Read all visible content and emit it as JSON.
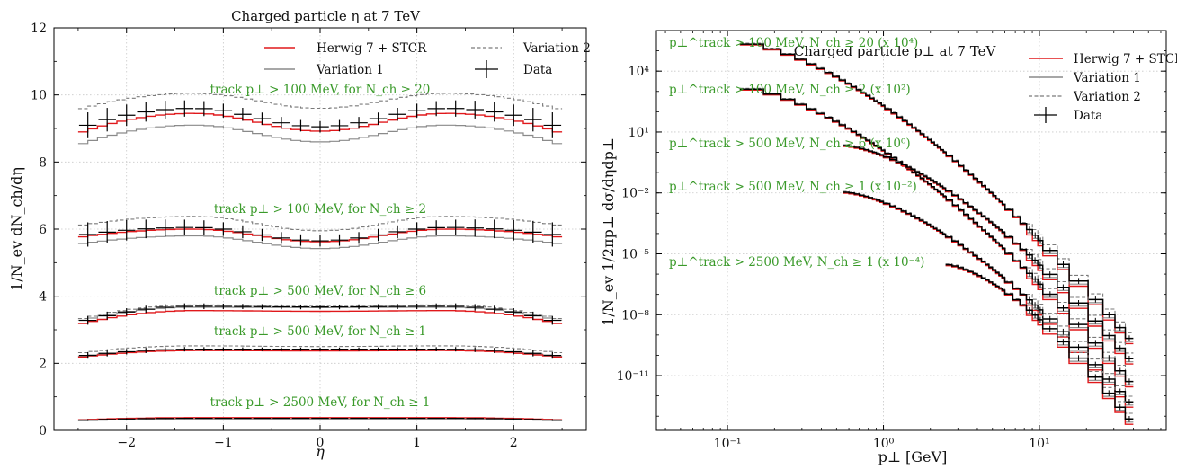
{
  "colors": {
    "herwig": "#e0181b",
    "variation1": "#8a8a8a",
    "variation2": "#7a7a7a",
    "data": "#000000",
    "annotation": "#3a9a2a"
  },
  "chart_data": [
    {
      "type": "line",
      "title": "Charged particle η at 7 TeV",
      "xlabel": "η",
      "ylabel": "1/N_ev dN_ch/dη",
      "xlim": [
        -2.75,
        2.75
      ],
      "ylim": [
        0,
        12
      ],
      "x_ticks": [
        -2,
        -1,
        0,
        1,
        2
      ],
      "x_tick_labels": [
        "−2",
        "−1",
        "0",
        "1",
        "2"
      ],
      "y_ticks": [
        0,
        2,
        4,
        6,
        8,
        10,
        12
      ],
      "y_tick_labels": [
        "0",
        "2",
        "4",
        "6",
        "8",
        "10",
        "12"
      ],
      "grid": true,
      "legend_position": "top-right",
      "legend": [
        {
          "label": "Herwig 7 + STCR",
          "style": "herwig"
        },
        {
          "label": "Variation 2",
          "style": "variation2"
        },
        {
          "label": "Variation 1",
          "style": "variation1"
        },
        {
          "label": "Data",
          "style": "data"
        }
      ],
      "bins": {
        "start": -2.5,
        "width": 0.1,
        "count": 50
      },
      "groups": [
        {
          "annotation": "track p⊥ > 100 MeV, for N_ch ≥ 20",
          "data": {
            "center": 9.05,
            "edge": 9.6,
            "wing": 9.0,
            "err_center": 0.17,
            "err_edge": 0.35
          },
          "herwig": {
            "center": 8.92,
            "edge": 9.45,
            "wing": 8.85
          },
          "var1": {
            "center": 8.6,
            "edge": 9.1,
            "wing": 8.5
          },
          "var2": {
            "center": 9.6,
            "edge": 10.05,
            "wing": 9.55
          }
        },
        {
          "annotation": "track p⊥ > 100 MeV, for N_ch ≥ 2",
          "data": {
            "center": 5.65,
            "edge": 6.05,
            "wing": 5.8,
            "err_center": 0.17,
            "err_edge": 0.33
          },
          "herwig": {
            "center": 5.62,
            "edge": 6.0,
            "wing": 5.75
          },
          "var1": {
            "center": 5.42,
            "edge": 5.8,
            "wing": 5.55
          },
          "var2": {
            "center": 5.95,
            "edge": 6.38,
            "wing": 6.1
          }
        },
        {
          "annotation": "track p⊥ > 500 MeV, for N_ch ≥ 6",
          "data": {
            "center": 3.68,
            "edge": 3.7,
            "wing": 3.2,
            "err_center": 0.07,
            "err_edge": 0.12
          },
          "herwig": {
            "center": 3.55,
            "edge": 3.57,
            "wing": 3.15
          },
          "var1": {
            "center": 3.66,
            "edge": 3.67,
            "wing": 3.25
          },
          "var2": {
            "center": 3.72,
            "edge": 3.74,
            "wing": 3.3
          }
        },
        {
          "annotation": "track p⊥ > 500 MeV, for N_ch ≥ 1",
          "data": {
            "center": 2.42,
            "edge": 2.42,
            "wing": 2.2,
            "err_center": 0.05,
            "err_edge": 0.09
          },
          "herwig": {
            "center": 2.37,
            "edge": 2.38,
            "wing": 2.17
          },
          "var1": {
            "center": 2.4,
            "edge": 2.4,
            "wing": 2.2
          },
          "var2": {
            "center": 2.5,
            "edge": 2.52,
            "wing": 2.3
          }
        },
        {
          "annotation": "track p⊥ > 2500 MeV, for N_ch ≥ 1",
          "data": {
            "center": 0.36,
            "edge": 0.36,
            "wing": 0.3,
            "err_center": 0.01,
            "err_edge": 0.02
          },
          "herwig": {
            "center": 0.38,
            "edge": 0.38,
            "wing": 0.31
          },
          "var1": {
            "center": 0.34,
            "edge": 0.34,
            "wing": 0.28
          },
          "var2": {
            "center": 0.37,
            "edge": 0.37,
            "wing": 0.3
          }
        }
      ]
    },
    {
      "type": "line",
      "title": "Charged particle p⊥ at 7 TeV",
      "xlabel": "p⊥ [GeV]",
      "ylabel": "1/N_ev 1/2πp⊥ dσ/dηdp⊥",
      "xscale": "log",
      "yscale": "log",
      "xlim": [
        0.035,
        65
      ],
      "ylim": [
        2e-14,
        1000000.0
      ],
      "x_major_ticks": [
        0.1,
        1,
        10
      ],
      "x_tick_labels": [
        "10⁻¹",
        "10⁰",
        "10¹"
      ],
      "y_major_ticks": [
        10000.0,
        10,
        0.01,
        1e-05,
        1e-08,
        1e-11
      ],
      "y_tick_labels": [
        "10⁴",
        "10¹",
        "10⁻²",
        "10⁻⁵",
        "10⁻⁸",
        "10⁻¹¹"
      ],
      "grid": true,
      "legend_position": "top-right",
      "legend": [
        {
          "label": "Herwig 7 + STCR",
          "style": "herwig"
        },
        {
          "label": "Variation 1",
          "style": "variation1"
        },
        {
          "label": "Variation 2",
          "style": "variation2"
        },
        {
          "label": "Data",
          "style": "data"
        }
      ],
      "series": [
        {
          "annotation": "p⊥^track > 100 MeV, N_ch ≥ 20 (x 10⁴)",
          "pt_min": 0.12,
          "y_at_min": 250000.0,
          "y_at_max": 4e-10
        },
        {
          "annotation": "p⊥^track > 100 MeV, N_ch ≥ 2 (x 10²)",
          "pt_min": 0.12,
          "y_at_min": 1500.0,
          "y_at_max": 3e-12
        },
        {
          "annotation": "p⊥^track > 500 MeV, N_ch ≥ 6 (x 10⁰)",
          "pt_min": 0.55,
          "y_at_min": 2.2,
          "y_at_max": 4e-11
        },
        {
          "annotation": "p⊥^track > 500 MeV, N_ch ≥ 1 (x 10⁻²)",
          "pt_min": 0.55,
          "y_at_min": 0.011,
          "y_at_max": 3e-13
        },
        {
          "annotation": "p⊥^track > 2500 MeV, N_ch ≥ 1 (x 10⁻⁴)",
          "pt_min": 2.5,
          "y_at_min": 3e-06,
          "y_at_max": 4e-14
        }
      ],
      "pt_max": 40
    }
  ]
}
